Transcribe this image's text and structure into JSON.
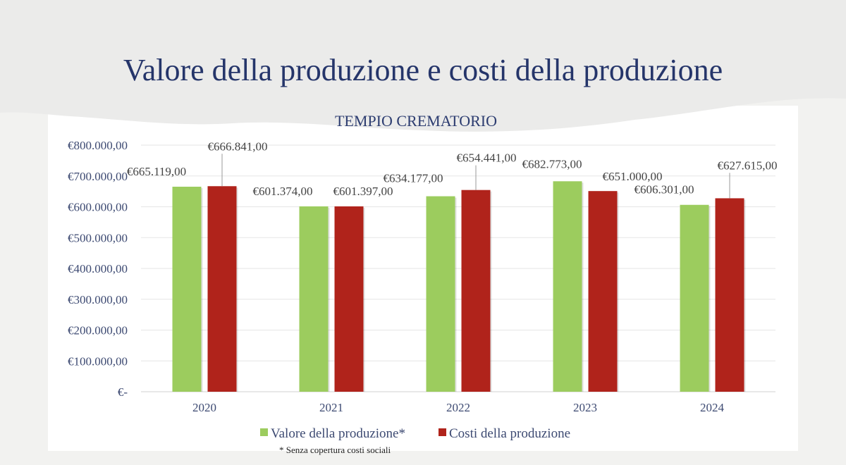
{
  "slide": {
    "title": "Valore della produzione e costi della produzione"
  },
  "chart_data": {
    "type": "bar",
    "title": "TEMPIO CREMATORIO",
    "categories": [
      "2020",
      "2021",
      "2022",
      "2023",
      "2024"
    ],
    "series": [
      {
        "name": "Valore della produzione*",
        "color": "#9ccc5e",
        "values": [
          665119,
          601374,
          634177,
          682773,
          606301
        ],
        "labels": [
          "€665.119,00",
          "€601.374,00",
          "€634.177,00",
          "€682.773,00",
          "€606.301,00"
        ]
      },
      {
        "name": "Costi della produzione",
        "color": "#b0231b",
        "values": [
          666841,
          601397,
          654441,
          651000,
          627615
        ],
        "labels": [
          "€666.841,00",
          "€601.397,00",
          "€654.441,00",
          "€651.000,00",
          "€627.615,00"
        ]
      }
    ],
    "ylim": [
      0,
      800000
    ],
    "ytick_labels": [
      "€-",
      "€100.000,00",
      "€200.000,00",
      "€300.000,00",
      "€400.000,00",
      "€500.000,00",
      "€600.000,00",
      "€700.000,00",
      "€800.000,00"
    ],
    "grid": true,
    "legend": "bottom",
    "footnote": "* Senza copertura costi sociali"
  }
}
